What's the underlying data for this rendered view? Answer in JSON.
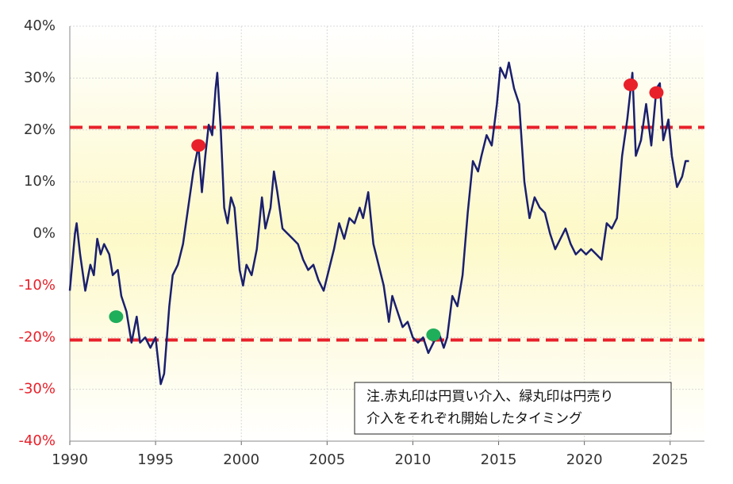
{
  "chart_data": {
    "type": "line",
    "xlim": [
      1990,
      2027
    ],
    "xticks": [
      1990,
      1995,
      2000,
      2005,
      2010,
      2015,
      2020,
      2025
    ],
    "ylim": [
      -40,
      40
    ],
    "yticks": [
      {
        "value": -40,
        "label": "-40%"
      },
      {
        "value": -30,
        "label": "-30%"
      },
      {
        "value": -20,
        "label": "-20%"
      },
      {
        "value": -10,
        "label": "-10%"
      },
      {
        "value": 0,
        "label": "0%"
      },
      {
        "value": 10,
        "label": "10%"
      },
      {
        "value": 20,
        "label": "20%"
      },
      {
        "value": 30,
        "label": "30%"
      },
      {
        "value": 40,
        "label": "40%"
      }
    ],
    "grid": true,
    "negative_tick_color": "#e8202a",
    "reference_lines": {
      "color": "#e8202a",
      "values": [
        20.5,
        -20.5
      ]
    },
    "series": [
      {
        "color": "#1a1f6e",
        "x": [
          1990.0,
          1990.3,
          1990.4,
          1990.6,
          1990.9,
          1991.2,
          1991.4,
          1991.6,
          1991.8,
          1992.0,
          1992.3,
          1992.5,
          1992.8,
          1993.0,
          1993.3,
          1993.6,
          1993.9,
          1994.1,
          1994.4,
          1994.7,
          1995.0,
          1995.3,
          1995.5,
          1995.8,
          1996.0,
          1996.3,
          1996.6,
          1996.9,
          1997.2,
          1997.5,
          1997.7,
          1997.9,
          1998.1,
          1998.3,
          1998.5,
          1998.6,
          1998.8,
          1999.0,
          1999.2,
          1999.4,
          1999.6,
          1999.9,
          2000.1,
          2000.3,
          2000.6,
          2000.9,
          2001.2,
          2001.4,
          2001.7,
          2001.9,
          2002.1,
          2002.4,
          2002.7,
          2003.0,
          2003.3,
          2003.6,
          2003.9,
          2004.2,
          2004.5,
          2004.8,
          2005.1,
          2005.4,
          2005.7,
          2006.0,
          2006.3,
          2006.6,
          2006.9,
          2007.1,
          2007.4,
          2007.7,
          2008.0,
          2008.3,
          2008.6,
          2008.8,
          2009.1,
          2009.4,
          2009.7,
          2010.0,
          2010.3,
          2010.6,
          2010.9,
          2011.2,
          2011.5,
          2011.8,
          2012.0,
          2012.3,
          2012.6,
          2012.9,
          2013.2,
          2013.5,
          2013.8,
          2014.0,
          2014.3,
          2014.6,
          2014.9,
          2015.1,
          2015.4,
          2015.6,
          2015.9,
          2016.2,
          2016.5,
          2016.8,
          2017.1,
          2017.4,
          2017.7,
          2018.0,
          2018.3,
          2018.6,
          2018.9,
          2019.2,
          2019.5,
          2019.8,
          2020.1,
          2020.4,
          2020.7,
          2021.0,
          2021.3,
          2021.6,
          2021.9,
          2022.2,
          2022.5,
          2022.8,
          2023.0,
          2023.3,
          2023.6,
          2023.9,
          2024.2,
          2024.4,
          2024.6,
          2024.9,
          2025.1,
          2025.4,
          2025.7,
          2025.9,
          2026.1
        ],
        "values": [
          -11,
          0,
          2,
          -4,
          -11,
          -6,
          -8,
          -1,
          -4,
          -2,
          -4,
          -8,
          -7,
          -12,
          -15,
          -21,
          -16,
          -21,
          -20,
          -22,
          -20,
          -29,
          -27,
          -14,
          -8,
          -6,
          -2,
          5,
          12,
          17,
          8,
          15,
          21,
          19,
          28,
          31,
          20,
          5,
          2,
          7,
          5,
          -7,
          -10,
          -6,
          -8,
          -3,
          7,
          1,
          5,
          12,
          8,
          1,
          0,
          -1,
          -2,
          -5,
          -7,
          -6,
          -9,
          -11,
          -7,
          -3,
          2,
          -1,
          3,
          2,
          5,
          3,
          8,
          -2,
          -6,
          -10,
          -17,
          -12,
          -15,
          -18,
          -17,
          -20,
          -21,
          -20,
          -23,
          -21,
          -19,
          -22,
          -20,
          -12,
          -14,
          -8,
          4,
          14,
          12,
          15,
          19,
          17,
          25,
          32,
          30,
          33,
          28,
          25,
          10,
          3,
          7,
          5,
          4,
          0,
          -3,
          -1,
          1,
          -2,
          -4,
          -3,
          -4,
          -3,
          -4,
          -5,
          2,
          1,
          3,
          15,
          22,
          31,
          15,
          18,
          25,
          17,
          28,
          29,
          18,
          22,
          15,
          9,
          11,
          14,
          14
        ]
      }
    ],
    "markers": [
      {
        "color": "#e8202a",
        "x": [
          1997.5,
          2022.7,
          2024.2
        ],
        "values": [
          17,
          28.7,
          27.2
        ]
      },
      {
        "color": "#1fae5a",
        "x": [
          1992.7,
          2011.2
        ],
        "values": [
          -16,
          -19.5
        ]
      }
    ],
    "annotation": [
      "注.赤丸印は円買い介入、緑丸印は円売り",
      "介入をそれぞれ開始したタイミング"
    ]
  }
}
